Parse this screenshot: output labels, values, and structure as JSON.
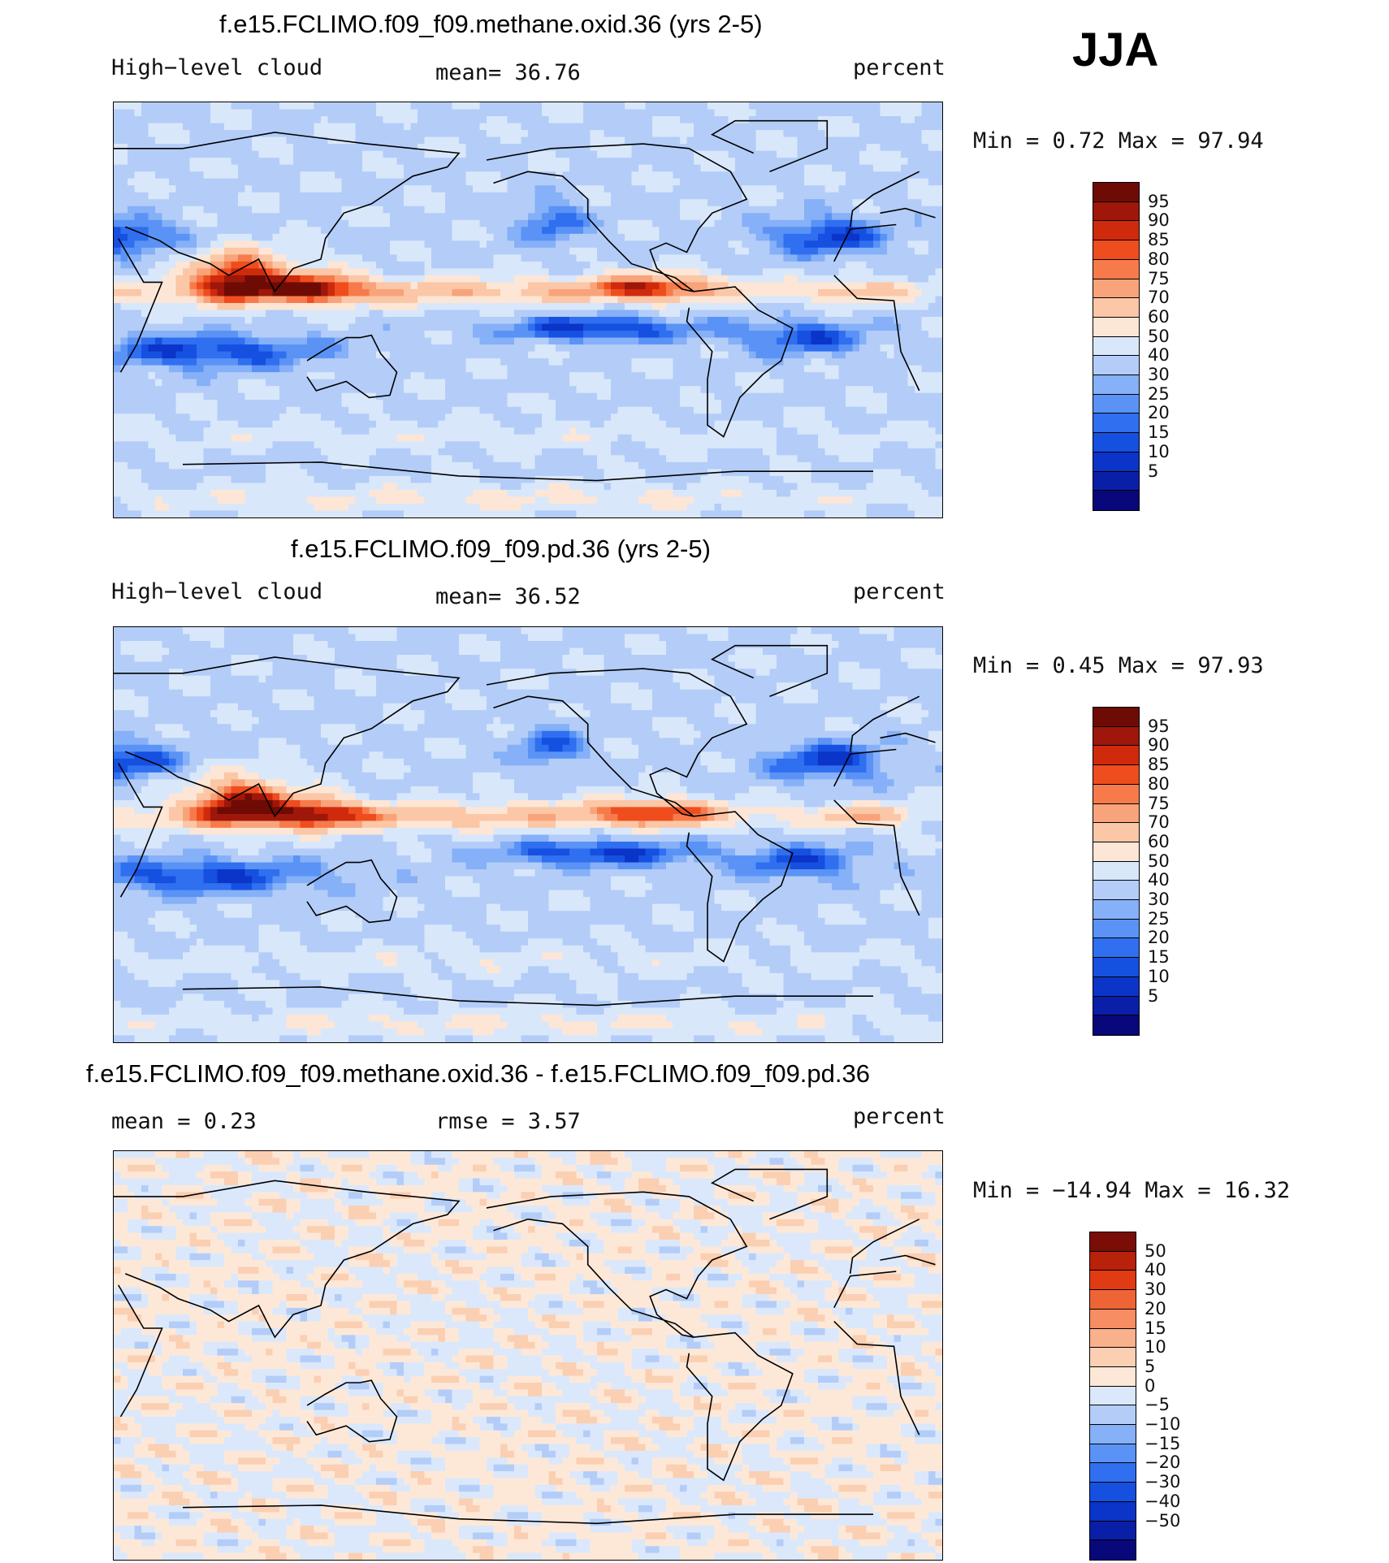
{
  "season": "JJA",
  "colors": {
    "abs_scale": [
      "#08087a",
      "#0a1fa8",
      "#0b34c8",
      "#1650e0",
      "#2f6ff0",
      "#5a93f5",
      "#86b0f7",
      "#b3cdf8",
      "#d9e7fb",
      "#fde6d6",
      "#fbc7a7",
      "#f9a37a",
      "#f77b4a",
      "#ef4d1e",
      "#cf2a0c",
      "#9e170a",
      "#6e0b05"
    ],
    "diff_scale": [
      "#08087a",
      "#0a1fa8",
      "#0b34c8",
      "#1650e0",
      "#2f6ff0",
      "#5a93f5",
      "#86b0f7",
      "#b3cdf8",
      "#dbe8fb",
      "#fde8d8",
      "#fbcfb2",
      "#f9b18c",
      "#f78d62",
      "#ef6436",
      "#e03b13",
      "#b8220a",
      "#7a0d05"
    ]
  },
  "panels": [
    {
      "title": "f.e15.FCLIMO.f09_f09.methane.oxid.36 (yrs 2-5)",
      "left_label": "High−level cloud",
      "mid_label": "mean=   36.76",
      "right_label": "percent",
      "minmax": "Min  =    0.72  Max  =   97.94",
      "colorbar_labels": [
        "95",
        "90",
        "85",
        "80",
        "75",
        "70",
        "60",
        "50",
        "40",
        "30",
        "25",
        "20",
        "15",
        "10",
        "5"
      ],
      "field": "abs"
    },
    {
      "title": "f.e15.FCLIMO.f09_f09.pd.36 (yrs 2-5)",
      "left_label": "High−level cloud",
      "mid_label": "mean=   36.52",
      "right_label": "percent",
      "minmax": "Min  =    0.45  Max  =   97.93",
      "colorbar_labels": [
        "95",
        "90",
        "85",
        "80",
        "75",
        "70",
        "60",
        "50",
        "40",
        "30",
        "25",
        "20",
        "15",
        "10",
        "5"
      ],
      "field": "abs"
    },
    {
      "title": "f.e15.FCLIMO.f09_f09.methane.oxid.36 - f.e15.FCLIMO.f09_f09.pd.36",
      "left_label": "mean  =     0.23",
      "mid_label": "rmse  =     3.57",
      "right_label": "percent",
      "minmax": "Min  = −14.94  Max  =   16.32",
      "colorbar_labels": [
        "50",
        "40",
        "30",
        "20",
        "15",
        "10",
        "5",
        "0",
        "−5",
        "−10",
        "−15",
        "−20",
        "−30",
        "−40",
        "−50"
      ],
      "field": "diff"
    }
  ]
}
